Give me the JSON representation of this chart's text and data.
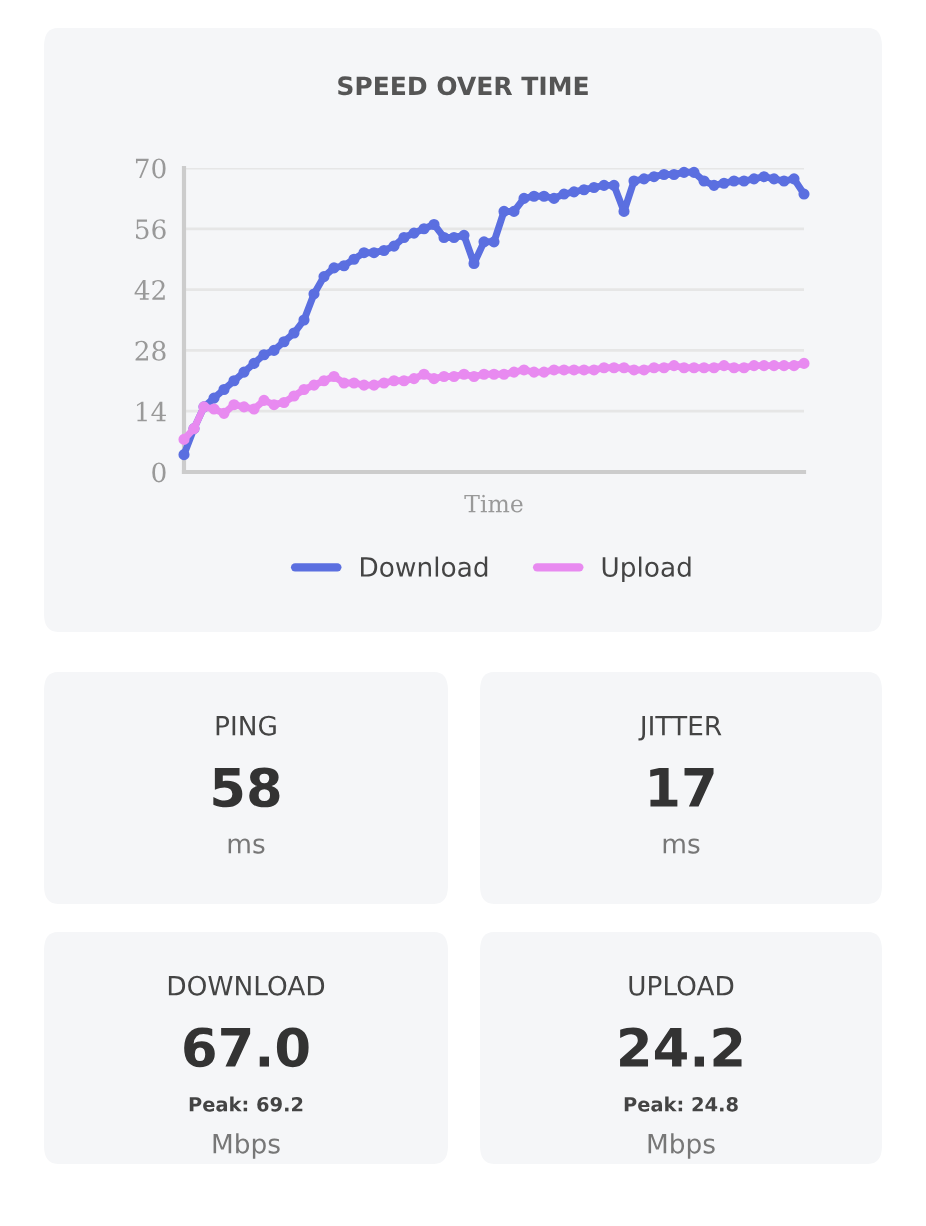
{
  "chart_data": [
    {
      "type": "line",
      "title": "SPEED OVER TIME",
      "xlabel": "Time",
      "categories": [
        null,
        null,
        null,
        null,
        null,
        null,
        null,
        null,
        null,
        null,
        null,
        null,
        null,
        null,
        null,
        null,
        null,
        null,
        null,
        null,
        null,
        null,
        null,
        null,
        null,
        null,
        null,
        null,
        null,
        null,
        null,
        null,
        null,
        null,
        null,
        null,
        null,
        null,
        null,
        null,
        null,
        null,
        null,
        null,
        null,
        null,
        null,
        null,
        null,
        null,
        null,
        null,
        null,
        null,
        null,
        null,
        null,
        null,
        null,
        null,
        null,
        null,
        null
      ],
      "series": [
        {
          "name": "Download",
          "color": "#5b6fe0",
          "values": [
            4,
            10,
            15,
            17,
            19,
            21,
            23,
            25,
            27,
            28,
            30,
            32,
            35,
            41,
            45,
            47,
            47.5,
            49,
            50.5,
            50.5,
            51,
            52,
            54,
            55,
            56,
            57,
            54,
            54,
            54.5,
            48,
            53,
            53,
            60,
            60,
            63,
            63.5,
            63.5,
            63,
            64,
            64.5,
            65,
            65.5,
            66,
            66,
            60,
            67,
            67.5,
            68,
            68.5,
            68.5,
            69,
            69,
            67,
            66,
            66.5,
            67,
            67,
            67.5,
            68,
            67.5,
            67,
            67.5,
            64
          ]
        },
        {
          "name": "Upload",
          "color": "#e88af0",
          "values": [
            7.5,
            10,
            15,
            14.5,
            13.5,
            15.5,
            15,
            14.5,
            16.5,
            15.5,
            16,
            17.5,
            19,
            20,
            21,
            22,
            20.5,
            20.5,
            20,
            20,
            20.5,
            21,
            21,
            21.5,
            22.5,
            21.5,
            22,
            22,
            22.5,
            22,
            22.5,
            22.5,
            22.5,
            23,
            23.5,
            23,
            23,
            23.5,
            23.5,
            23.5,
            23.5,
            23.5,
            24,
            24,
            24,
            23.5,
            23.5,
            24,
            24,
            24.5,
            24,
            24,
            24,
            24,
            24.5,
            24,
            24,
            24.5,
            24.5,
            24.5,
            24.5,
            24.5,
            25
          ]
        }
      ],
      "ylim": [
        0,
        70
      ],
      "yticks": [
        0,
        14,
        28,
        42,
        56,
        70
      ],
      "grid": "y",
      "legend": "bottom",
      "marker": "circle",
      "line_style": "solid",
      "tick_labels": "y"
    },
    {
      "type": "other",
      "title": "PING",
      "subtitle": "58",
      "annotations": [
        "ms"
      ]
    },
    {
      "type": "other",
      "title": "JITTER",
      "subtitle": "17",
      "annotations": [
        "ms"
      ]
    },
    {
      "type": "other",
      "title": "DOWNLOAD",
      "subtitle": "67.0",
      "annotations": [
        "Peak: 69.2",
        "Mbps"
      ]
    },
    {
      "type": "other",
      "title": "UPLOAD",
      "subtitle": "24.2",
      "annotations": [
        "Peak: 24.8",
        "Mbps"
      ]
    }
  ]
}
